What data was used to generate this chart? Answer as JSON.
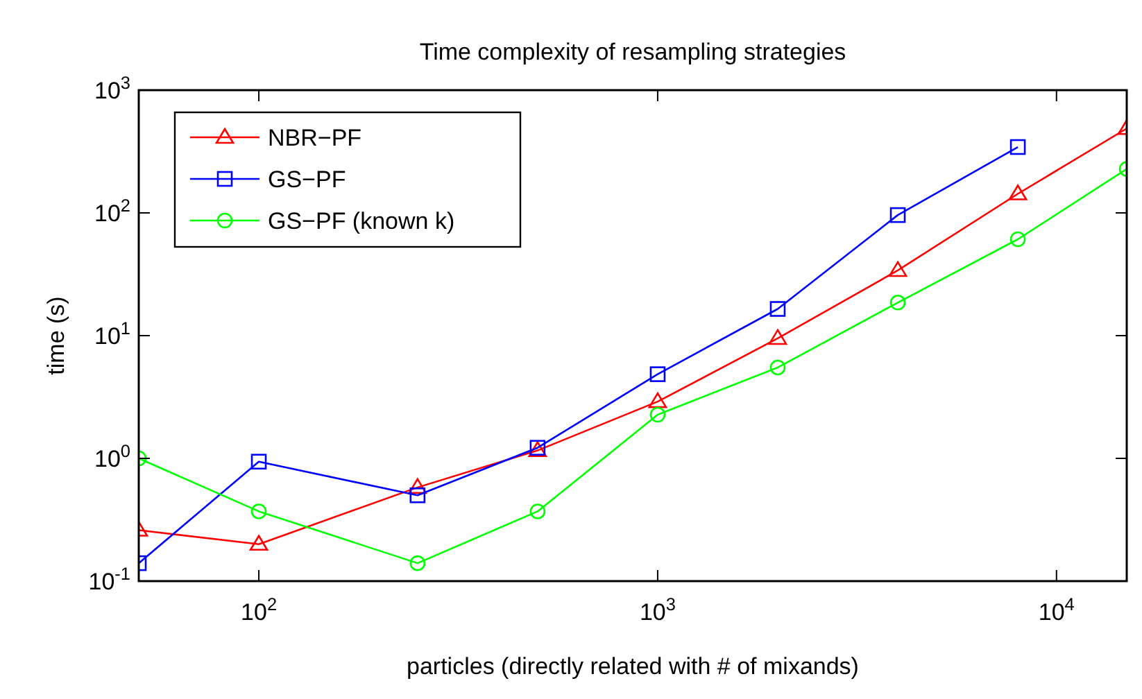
{
  "chart_data": {
    "type": "line",
    "title": "Time complexity of resampling strategies",
    "xlabel": "particles (directly related with # of mixands)",
    "ylabel": "time (s)",
    "x": [
      50,
      100,
      250,
      500,
      1000,
      2000,
      4000,
      8000,
      15000
    ],
    "series": [
      {
        "name": "NBR−PF",
        "color": "#ff0000",
        "marker": "triangle",
        "values": [
          0.26,
          0.2,
          0.58,
          1.16,
          2.9,
          9.5,
          34,
          143,
          487
        ]
      },
      {
        "name": "GS−PF",
        "color": "#0000ff",
        "marker": "square",
        "values": [
          0.14,
          0.94,
          0.5,
          1.22,
          4.85,
          16.5,
          96,
          344,
          null
        ]
      },
      {
        "name": "GS−PF (known k)",
        "color": "#00ff00",
        "marker": "circle",
        "values": [
          1.0,
          0.37,
          0.14,
          0.37,
          2.27,
          5.5,
          18.6,
          61,
          228
        ]
      }
    ],
    "log": "xy",
    "xlim": [
      50,
      15000
    ],
    "ylim": [
      0.1,
      1000
    ],
    "xticks": [
      {
        "value": 100,
        "label": "10$^{2}$"
      },
      {
        "value": 1000,
        "label": "10$^{3}$"
      },
      {
        "value": 10000,
        "label": "10$^{4}$"
      }
    ],
    "yticks": [
      {
        "value": 0.1,
        "label": "10$^{-1}$"
      },
      {
        "value": 1,
        "label": "10$^{0}$"
      },
      {
        "value": 10,
        "label": "10$^{1}$"
      },
      {
        "value": 100,
        "label": "10$^{2}$"
      },
      {
        "value": 1000,
        "label": "10$^{3}$"
      }
    ],
    "grid": false,
    "legend": "top left",
    "line_style": "solid"
  }
}
